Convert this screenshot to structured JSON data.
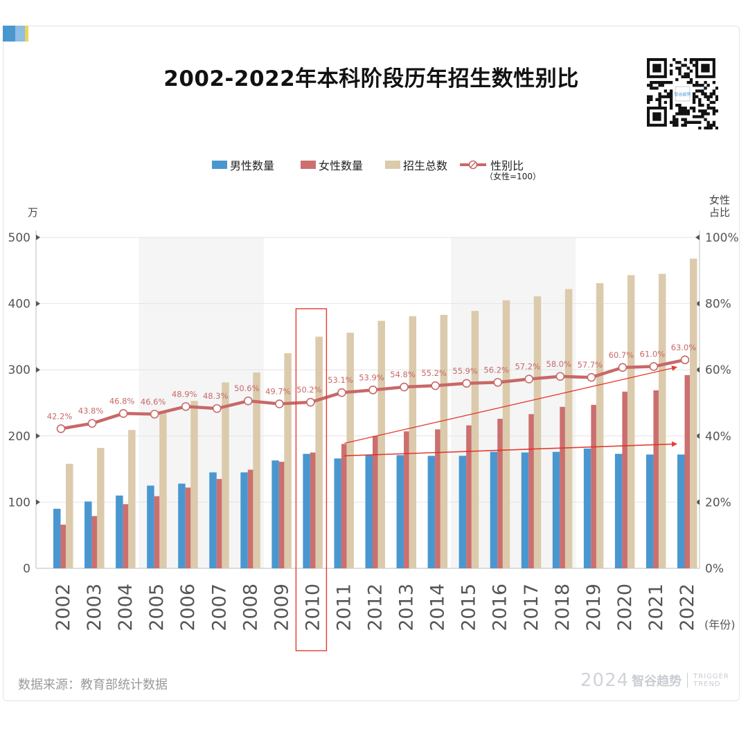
{
  "page": {
    "title": "2002-2022年本科阶段历年招生数性别比",
    "source": "数据来源：教育部统计数据",
    "brand_year": "2024",
    "brand_name": "智谷趋势",
    "brand_en_1": "TRIGGER",
    "brand_en_2": "TREND",
    "qr_label": "智谷趋势"
  },
  "colors": {
    "male": "#4a97d0",
    "female": "#cc6f6f",
    "total": "#dbcbac",
    "ratio_line": "#c86868",
    "grid": "#e4e4e4",
    "band": "#f5f5f5",
    "highlight": "#e03b2e",
    "arrow": "#e02a20"
  },
  "legend": {
    "male": "男性数量",
    "female": "女性数量",
    "total": "招生总数",
    "ratio": "性别比",
    "ratio_note": "（女性=100）"
  },
  "chart_data": {
    "type": "bar",
    "title": "2002-2022年本科阶段历年招生数性别比",
    "categories": [
      "2002",
      "2003",
      "2004",
      "2005",
      "2006",
      "2007",
      "2008",
      "2009",
      "2010",
      "2011",
      "2012",
      "2013",
      "2014",
      "2015",
      "2016",
      "2017",
      "2018",
      "2019",
      "2020",
      "2021",
      "2022"
    ],
    "series": [
      {
        "name": "男性数量",
        "axis": "left",
        "values": [
          90,
          101,
          110,
          125,
          128,
          145,
          145,
          163,
          173,
          166,
          171,
          171,
          170,
          170,
          176,
          175,
          176,
          181,
          173,
          172,
          172
        ]
      },
      {
        "name": "女性数量",
        "axis": "left",
        "values": [
          66,
          79,
          97,
          109,
          122,
          135,
          149,
          161,
          175,
          188,
          200,
          207,
          210,
          216,
          226,
          233,
          244,
          247,
          267,
          269,
          292
        ]
      },
      {
        "name": "招生总数",
        "axis": "left",
        "values": [
          158,
          182,
          209,
          236,
          253,
          281,
          296,
          325,
          350,
          356,
          374,
          381,
          383,
          389,
          405,
          411,
          422,
          431,
          443,
          445,
          468
        ]
      },
      {
        "name": "性别比",
        "axis": "right",
        "type": "line",
        "values": [
          42.2,
          43.8,
          46.8,
          46.6,
          48.9,
          48.3,
          50.6,
          49.7,
          50.2,
          53.1,
          53.9,
          54.8,
          55.2,
          55.9,
          56.2,
          57.2,
          58.0,
          57.7,
          60.7,
          61.0,
          63.0
        ],
        "labels": [
          "42.2%",
          "43.8%",
          "46.8%",
          "46.6%",
          "48.9%",
          "48.3%",
          "50.6%",
          "49.7%",
          "50.2%",
          "53.1%",
          "53.9%",
          "54.8%",
          "55.2%",
          "55.9%",
          "56.2%",
          "57.2%",
          "58.0%",
          "57.7%",
          "60.7%",
          "61.0%",
          "63.0%"
        ]
      }
    ],
    "ylabel": "万",
    "ylim": [
      0,
      500
    ],
    "yticks": [
      "0",
      "100",
      "200",
      "300",
      "400",
      "500"
    ],
    "ytick_values": [
      0,
      100,
      200,
      300,
      400,
      500
    ],
    "y2label_1": "女性",
    "y2label_2": "占比",
    "y2lim": [
      0,
      100
    ],
    "y2ticks": [
      "0%",
      "20%",
      "40%",
      "60%",
      "80%",
      "100%"
    ],
    "y2tick_values": [
      0,
      20,
      40,
      60,
      80,
      100
    ],
    "xlabel": "(年份)",
    "shaded_bands": [
      [
        "2005",
        "2008"
      ],
      [
        "2015",
        "2018"
      ]
    ],
    "highlight_category": "2010",
    "trend_arrows": [
      {
        "from_year": "2011",
        "from_value": 189,
        "to_year": "2022",
        "to_value": 304,
        "axis": "left"
      },
      {
        "from_year": "2011",
        "from_value": 170,
        "to_year": "2022",
        "to_value": 188,
        "axis": "left"
      }
    ]
  }
}
